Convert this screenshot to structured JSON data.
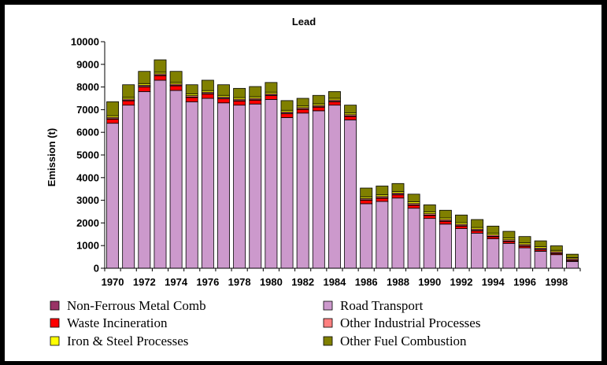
{
  "chart_data": {
    "type": "bar",
    "stacked": true,
    "title": "Lead",
    "xlabel": "",
    "ylabel": "Emission (t)",
    "ylim": [
      0,
      10000
    ],
    "yticks": [
      0,
      1000,
      2000,
      3000,
      4000,
      5000,
      6000,
      7000,
      8000,
      9000,
      10000
    ],
    "grid": false,
    "legend_position": "bottom",
    "categories": [
      "1970",
      "1971",
      "1972",
      "1973",
      "1974",
      "1975",
      "1976",
      "1977",
      "1978",
      "1979",
      "1980",
      "1981",
      "1982",
      "1983",
      "1984",
      "1985",
      "1986",
      "1987",
      "1988",
      "1989",
      "1990",
      "1991",
      "1992",
      "1993",
      "1994",
      "1995",
      "1996",
      "1997",
      "1998",
      "1999"
    ],
    "x_tick_labels": [
      "1970",
      "1972",
      "1974",
      "1976",
      "1978",
      "1980",
      "1982",
      "1984",
      "1986",
      "1988",
      "1990",
      "1992",
      "1994",
      "1996",
      "1998"
    ],
    "series": [
      {
        "name": "Road Transport",
        "color": "#CC99CC",
        "values": [
          6400,
          7200,
          7800,
          8300,
          7850,
          7350,
          7500,
          7300,
          7200,
          7250,
          7450,
          6650,
          6850,
          6950,
          7200,
          6550,
          2850,
          2950,
          3100,
          2650,
          2200,
          1950,
          1750,
          1550,
          1300,
          1100,
          900,
          750,
          600,
          300
        ]
      },
      {
        "name": "Waste Incineration",
        "color": "#FF0000",
        "values": [
          180,
          190,
          200,
          200,
          200,
          190,
          190,
          180,
          180,
          170,
          170,
          170,
          160,
          160,
          150,
          150,
          150,
          140,
          140,
          130,
          130,
          120,
          110,
          100,
          90,
          80,
          70,
          60,
          50,
          40
        ]
      },
      {
        "name": "Non-Ferrous Metal Comb",
        "color": "#993366",
        "values": [
          20,
          20,
          20,
          20,
          20,
          20,
          20,
          20,
          20,
          20,
          20,
          20,
          20,
          20,
          20,
          20,
          20,
          20,
          20,
          20,
          20,
          20,
          20,
          20,
          20,
          20,
          20,
          20,
          20,
          20
        ]
      },
      {
        "name": "Other Industrial Processes",
        "color": "#FF8080",
        "values": [
          60,
          60,
          60,
          60,
          60,
          60,
          60,
          60,
          60,
          60,
          60,
          60,
          60,
          60,
          60,
          60,
          60,
          60,
          60,
          60,
          60,
          60,
          60,
          60,
          60,
          60,
          60,
          60,
          60,
          60
        ]
      },
      {
        "name": "Iron & Steel Processes",
        "color": "#FFFF00",
        "values": [
          70,
          70,
          70,
          70,
          70,
          70,
          70,
          70,
          70,
          70,
          70,
          70,
          70,
          70,
          70,
          70,
          70,
          70,
          70,
          70,
          70,
          70,
          70,
          70,
          70,
          70,
          70,
          70,
          60,
          50
        ]
      },
      {
        "name": "Other Fuel Combustion",
        "color": "#808000",
        "values": [
          620,
          560,
          540,
          550,
          490,
          410,
          460,
          470,
          410,
          450,
          430,
          430,
          340,
          370,
          300,
          350,
          390,
          390,
          350,
          340,
          320,
          340,
          340,
          350,
          320,
          300,
          280,
          250,
          200,
          150
        ]
      }
    ]
  },
  "legend": {
    "items": [
      {
        "label": "Non-Ferrous Metal Comb",
        "color": "#993366"
      },
      {
        "label": "Road Transport",
        "color": "#CC99CC"
      },
      {
        "label": "Waste Incineration",
        "color": "#FF0000"
      },
      {
        "label": "Other Industrial Processes",
        "color": "#FF8080"
      },
      {
        "label": "Iron & Steel Processes",
        "color": "#FFFF00"
      },
      {
        "label": "Other Fuel Combustion",
        "color": "#808000"
      }
    ]
  }
}
